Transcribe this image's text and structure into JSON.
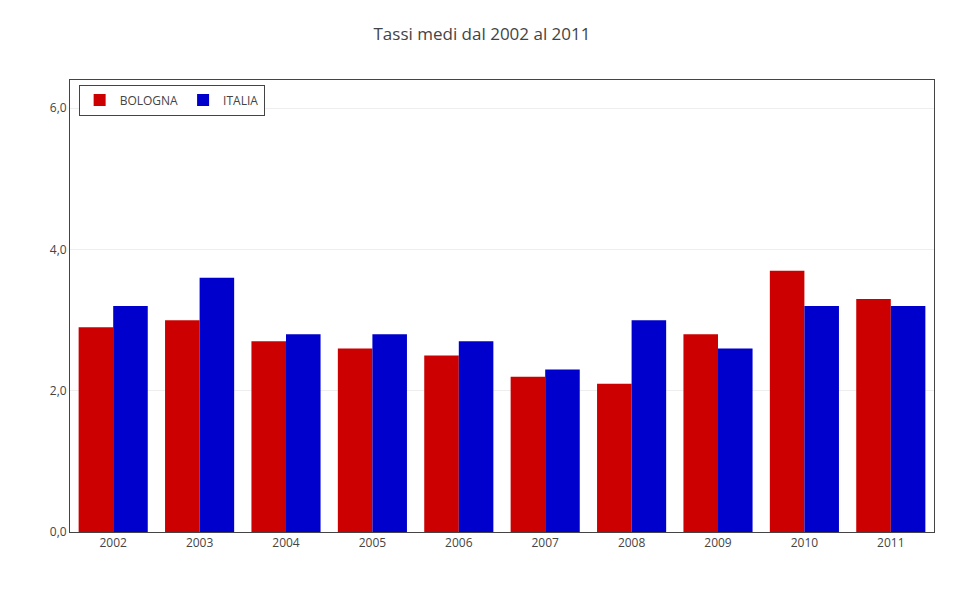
{
  "chart_data": {
    "type": "bar",
    "title": "Tassi medi dal 2002 al 2011",
    "categories": [
      "2002",
      "2003",
      "2004",
      "2005",
      "2006",
      "2007",
      "2008",
      "2009",
      "2010",
      "2011"
    ],
    "series": [
      {
        "name": "BOLOGNA",
        "color": "#cc0000",
        "values": [
          2.9,
          3.0,
          2.7,
          2.6,
          2.5,
          2.2,
          2.1,
          2.8,
          3.7,
          3.3
        ]
      },
      {
        "name": "ITALIA",
        "color": "#0000cc",
        "values": [
          3.2,
          3.6,
          2.8,
          2.8,
          2.7,
          2.3,
          3.0,
          2.6,
          3.2,
          3.2
        ]
      }
    ],
    "ylim": [
      0,
      6.4
    ],
    "yticks": [
      {
        "value": 0.0,
        "label": "0,0"
      },
      {
        "value": 2.0,
        "label": "2,0"
      },
      {
        "value": 4.0,
        "label": "4,0"
      },
      {
        "value": 6.0,
        "label": "6,0"
      }
    ],
    "grid": true,
    "legend": "upper left"
  }
}
